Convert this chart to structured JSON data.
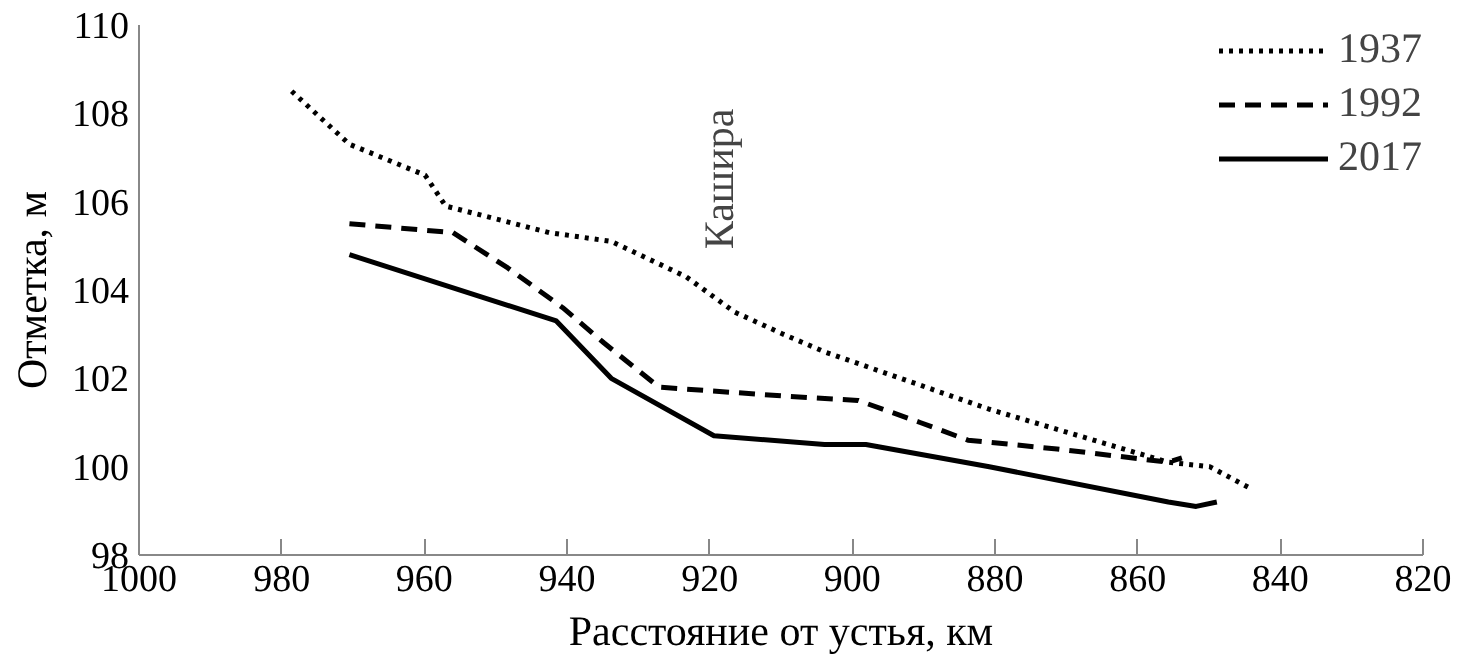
{
  "chart_data": {
    "type": "line",
    "xlabel": "Расстояние от устья, км",
    "ylabel": "Отметка, м",
    "xlim": [
      1000,
      820
    ],
    "xticks": [
      1000,
      980,
      960,
      940,
      920,
      900,
      880,
      860,
      840,
      820
    ],
    "ylim": [
      98,
      110
    ],
    "yticks": [
      98,
      100,
      102,
      104,
      106,
      108,
      110
    ],
    "grid": false,
    "legend": "top right",
    "marker": "none",
    "annotations": [
      "Кашира"
    ],
    "series": [
      {
        "name": "1937",
        "color": "#000000",
        "line_style": "dotted",
        "x": [
          978.6,
          970.5,
          959.9,
          957,
          942.5,
          933.8,
          923.3,
          916.5,
          909.7,
          903.9,
          880.8,
          855.7,
          849.9,
          844.1
        ],
        "values": [
          108.5,
          107.3,
          106.6,
          105.9,
          105.3,
          105.1,
          104.3,
          103.5,
          103.0,
          102.6,
          101.3,
          100.1,
          100.0,
          99.5
        ]
      },
      {
        "name": "1992",
        "color": "#000000",
        "line_style": "dashed",
        "x": [
          970.5,
          956,
          948.3,
          940.6,
          934.8,
          927.1,
          909.7,
          899.2,
          890.5,
          883.8,
          871.3,
          855.7,
          853.8
        ],
        "values": [
          105.5,
          105.3,
          104.5,
          103.6,
          102.8,
          101.8,
          101.6,
          101.5,
          101.0,
          100.6,
          100.4,
          100.1,
          100.2
        ]
      },
      {
        "name": "2017",
        "color": "#000000",
        "line_style": "solid",
        "x": [
          970.5,
          941.5,
          933.8,
          919.4,
          903.9,
          898.1,
          880.8,
          855.7,
          851.8,
          848.9
        ],
        "values": [
          104.8,
          103.3,
          102.0,
          100.7,
          100.5,
          100.5,
          100.0,
          99.2,
          99.1,
          99.2
        ]
      }
    ]
  }
}
